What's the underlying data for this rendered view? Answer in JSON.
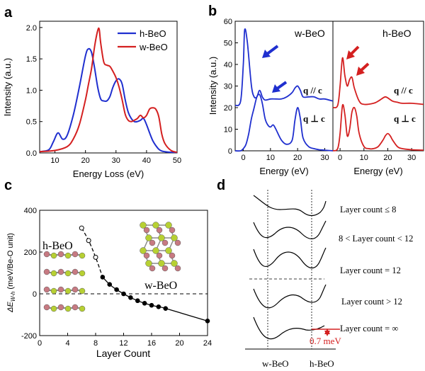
{
  "panels": {
    "a": {
      "letter": "a"
    },
    "b": {
      "letter": "b"
    },
    "c": {
      "letter": "c"
    },
    "d": {
      "letter": "d"
    }
  },
  "chart_data": [
    {
      "type": "line",
      "panel": "a",
      "xlabel": "Energy Loss (eV)",
      "ylabel": "Intensity (a.u.)",
      "xlim": [
        5,
        50
      ],
      "ylim": [
        0,
        2.1
      ],
      "xticks": [
        "10",
        "20",
        "30",
        "40",
        "50"
      ],
      "yticks": [
        "0.0",
        "0.5",
        "1.0",
        "1.5",
        "2.0"
      ],
      "legend_position": "top-right",
      "series": [
        {
          "name": "h-BeO",
          "color": "#1f2fcf",
          "x": [
            5,
            8,
            9.5,
            11,
            12.5,
            14,
            16,
            18,
            20,
            21,
            22,
            23,
            24,
            25,
            26,
            27,
            28,
            29,
            30,
            31,
            32,
            33,
            34,
            35,
            36,
            37,
            38,
            39,
            40,
            41,
            42,
            43,
            44,
            45,
            46,
            48,
            50
          ],
          "y": [
            0.02,
            0.05,
            0.18,
            0.32,
            0.22,
            0.28,
            0.6,
            1.05,
            1.55,
            1.66,
            1.6,
            1.35,
            1.05,
            0.86,
            0.83,
            0.83,
            0.9,
            1.05,
            1.15,
            1.18,
            1.1,
            0.85,
            0.65,
            0.55,
            0.5,
            0.5,
            0.52,
            0.55,
            0.45,
            0.32,
            0.2,
            0.12,
            0.06,
            0.03,
            0.02,
            0.01,
            0.01
          ]
        },
        {
          "name": "w-BeO",
          "color": "#d42020",
          "x": [
            5,
            10,
            14,
            16,
            18,
            20,
            21,
            22,
            23,
            24,
            24.5,
            25,
            26,
            27,
            28,
            29,
            30,
            31,
            32,
            33,
            34,
            35,
            36,
            37,
            38,
            39,
            40,
            41,
            42,
            43,
            44,
            45,
            46,
            48,
            50
          ],
          "y": [
            0.02,
            0.04,
            0.1,
            0.22,
            0.45,
            0.85,
            1.1,
            1.35,
            1.7,
            1.95,
            1.97,
            1.75,
            1.45,
            1.4,
            1.38,
            1.3,
            1.2,
            1.05,
            0.85,
            0.62,
            0.52,
            0.5,
            0.52,
            0.55,
            0.6,
            0.56,
            0.6,
            0.7,
            0.72,
            0.7,
            0.58,
            0.3,
            0.15,
            0.04,
            0.01
          ]
        }
      ]
    },
    {
      "type": "line",
      "panel": "b",
      "xlabel": "Energy (eV)",
      "ylabel": "Intensity (a.u.)",
      "ylim": [
        0,
        60
      ],
      "yticks": [
        "0",
        "10",
        "20",
        "30",
        "40",
        "50",
        "60"
      ],
      "subplots": [
        {
          "title": "w-BeO",
          "color": "#1f2fcf",
          "xlim": [
            -3,
            33
          ],
          "xticks": [
            "0",
            "10",
            "20",
            "30"
          ],
          "annotations": [
            "q // c",
            "q ⊥ c"
          ],
          "series": [
            {
              "name": "q // c",
              "x": [
                -3,
                -1,
                0,
                0.5,
                1.5,
                3,
                4,
                5,
                6,
                7,
                8,
                10,
                12,
                14,
                16,
                18,
                19,
                20,
                21,
                22,
                24,
                26,
                28,
                30,
                33
              ],
              "y": [
                21,
                23,
                40,
                56,
                50,
                30,
                25,
                25,
                28,
                25,
                23.5,
                24,
                24,
                24,
                25,
                27,
                29,
                30,
                28,
                25,
                25,
                25,
                24,
                24,
                23
              ]
            },
            {
              "name": "q ⊥ c",
              "x": [
                -3,
                -1,
                0,
                1,
                2,
                3,
                4,
                5,
                6,
                7,
                8,
                9,
                10,
                11,
                12,
                14,
                16,
                18,
                19,
                20,
                21,
                22,
                24,
                26,
                28,
                30,
                33
              ],
              "y": [
                0,
                0,
                1,
                3,
                8,
                15,
                20,
                25,
                26,
                22,
                15,
                12,
                11,
                12,
                10,
                5,
                3,
                5,
                14,
                20,
                15,
                6,
                2,
                1,
                0.5,
                0.3,
                0
              ]
            }
          ]
        },
        {
          "title": "h-BeO",
          "color": "#d42020",
          "xlim": [
            -3,
            35
          ],
          "xticks": [
            "0",
            "10",
            "20",
            "30"
          ],
          "annotations": [
            "q // c",
            "q ⊥ c"
          ],
          "series": [
            {
              "name": "q // c",
              "x": [
                -3,
                -1,
                0,
                1,
                2,
                3,
                4,
                5,
                6,
                8,
                10,
                14,
                16,
                18,
                19,
                20,
                22,
                24,
                26,
                30,
                35
              ],
              "y": [
                20,
                21,
                30,
                43,
                35,
                30,
                33,
                34,
                29,
                23,
                21.5,
                22,
                23,
                24.5,
                25,
                24.5,
                23,
                22.5,
                22,
                22,
                21.5
              ]
            },
            {
              "name": "q ⊥ c",
              "x": [
                -3,
                -1,
                0,
                1,
                2,
                3,
                4,
                5,
                6,
                7,
                8,
                10,
                12,
                14,
                16,
                18,
                19,
                20,
                21,
                22,
                24,
                26,
                30,
                35
              ],
              "y": [
                0,
                1,
                8,
                21,
                17,
                7,
                10,
                18,
                20,
                16,
                8,
                2,
                1,
                1,
                2,
                5,
                7,
                8,
                7,
                5,
                2,
                1,
                0.5,
                0.3
              ]
            }
          ]
        }
      ]
    },
    {
      "type": "scatter",
      "panel": "c",
      "xlabel": "Layer Count",
      "ylabel": "ΔEW-h (meV/Be-O unit)",
      "xlim": [
        0,
        24
      ],
      "ylim": [
        -200,
        400
      ],
      "xticks": [
        "0",
        "4",
        "8",
        "12",
        "16",
        "20",
        "24"
      ],
      "yticks": [
        "-200",
        "0",
        "200",
        "400"
      ],
      "annotations": [
        "h-BeO",
        "w-BeO"
      ],
      "series": [
        {
          "name": "h-BeO",
          "marker": "open",
          "line": "dashed",
          "x": [
            6,
            7,
            8
          ],
          "y": [
            315,
            255,
            175
          ]
        },
        {
          "name": "w-BeO",
          "marker": "filled",
          "line": "solid",
          "x": [
            9,
            10,
            11,
            12,
            13,
            14,
            15,
            16,
            17,
            18,
            24
          ],
          "y": [
            80,
            45,
            20,
            0,
            -18,
            -33,
            -45,
            -55,
            -62,
            -70,
            -130
          ]
        }
      ]
    }
  ],
  "diagram_d": {
    "labels": [
      "Layer count ≤ 8",
      "8 < Layer count < 12",
      "Layer count = 12",
      "Layer count > 12",
      "Layer count = ∞"
    ],
    "x_labels": [
      "w-BeO",
      "h-BeO"
    ],
    "energy_note": "0.7 meV"
  }
}
